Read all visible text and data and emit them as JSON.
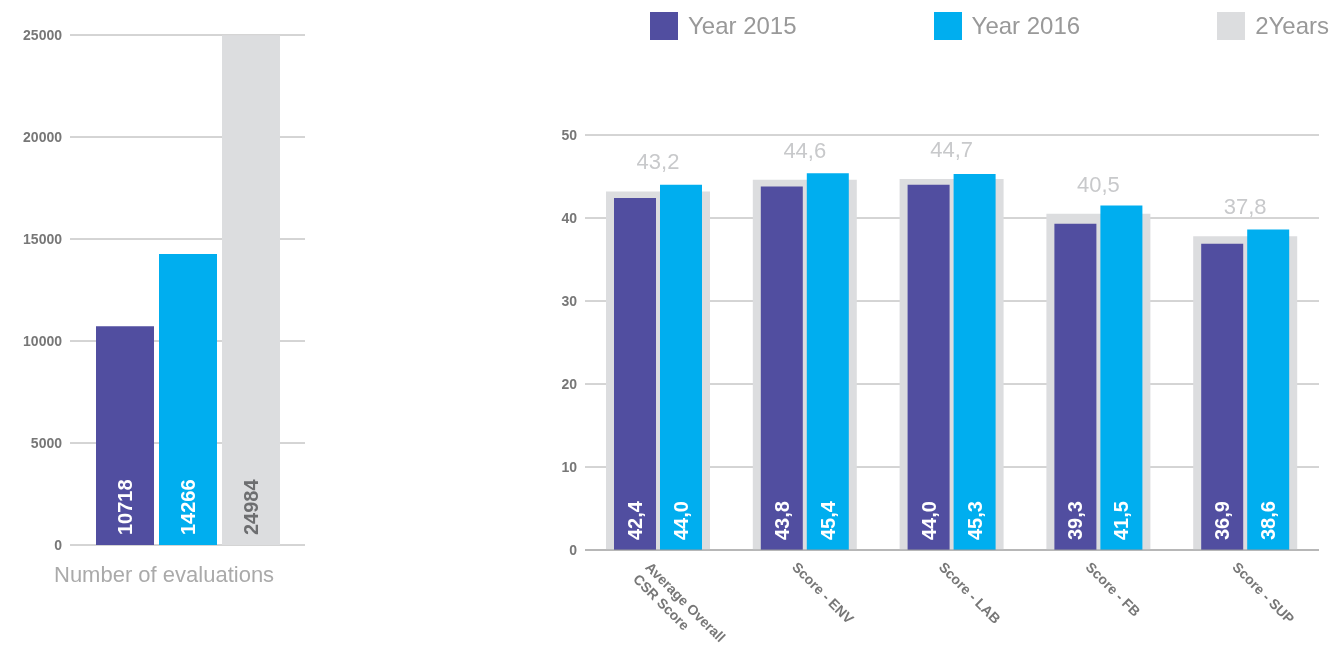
{
  "chart_data": [
    {
      "type": "bar",
      "xlabel": "Number of evaluations",
      "categories": [
        null
      ],
      "series": [
        {
          "color": "#514ea0",
          "values": [
            10718
          ]
        },
        {
          "color": "#00aeef",
          "values": [
            14266
          ]
        },
        {
          "color": "#dcdddf",
          "values": [
            24984
          ]
        }
      ],
      "ylim": [
        0,
        25000
      ],
      "yticks": [
        0,
        5000,
        10000,
        15000,
        20000,
        25000
      ],
      "grid": "y",
      "data_labels": true
    },
    {
      "type": "bar",
      "categories": [
        "Average Overall CSR Score",
        "Score - ENV",
        "Score - LAB",
        "Score - FB",
        "Score - SUP"
      ],
      "series": [
        {
          "name": "Year 2015",
          "color": "#514ea0",
          "values": [
            42.4,
            43.8,
            44.0,
            39.3,
            36.9
          ],
          "value_labels": [
            "42,4",
            "43,8",
            "44,0",
            "39,3",
            "36,9"
          ]
        },
        {
          "name": "Year 2016",
          "color": "#00aeef",
          "values": [
            44.0,
            45.4,
            45.3,
            41.5,
            38.6
          ],
          "value_labels": [
            "44,0",
            "45,4",
            "45,3",
            "41,5",
            "38,6"
          ]
        },
        {
          "name": "2Years",
          "color": "#dcdddf",
          "values": [
            43.2,
            44.6,
            44.7,
            40.5,
            37.8
          ],
          "value_labels": [
            "43,2",
            "44,6",
            "44,7",
            "40,5",
            "37,8"
          ]
        }
      ],
      "ylim": [
        0,
        50
      ],
      "yticks": [
        0,
        10,
        20,
        30,
        40,
        50
      ],
      "grid": "y",
      "legend": "top"
    }
  ]
}
